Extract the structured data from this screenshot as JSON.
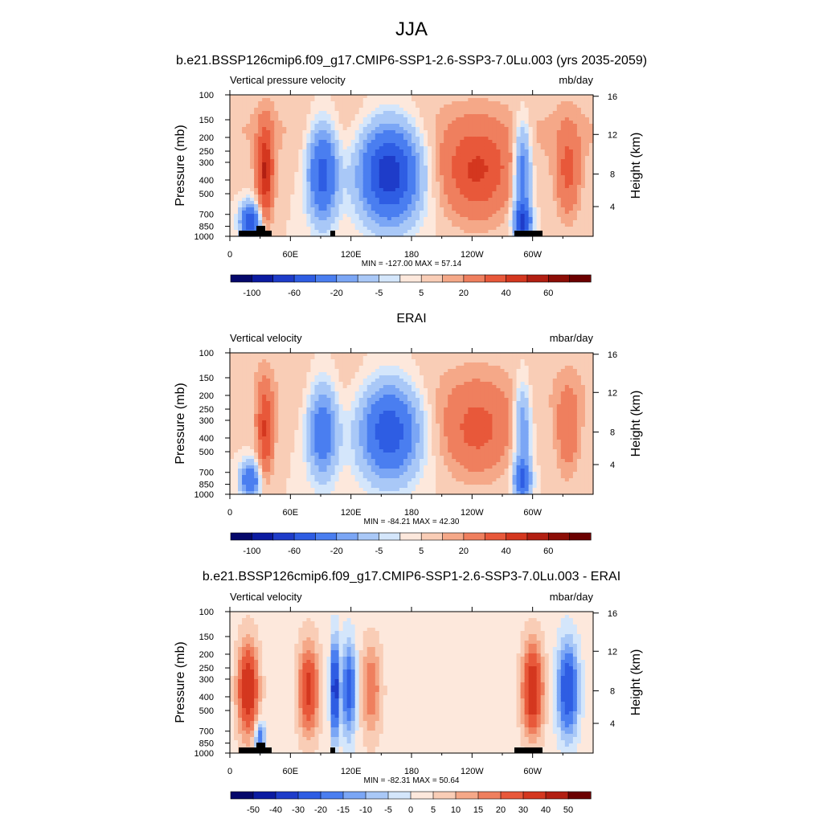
{
  "figure": {
    "title": "JJA"
  },
  "chart_data": [
    {
      "type": "heatmap",
      "title": "b.e21.BSSP126cmip6.f09_g17.CMIP6-SSP1-2.6-SSP3-7.0Lu.003 (yrs 2035-2059)",
      "left_string": "Vertical pressure velocity",
      "right_string": "mb/day",
      "ylabel": "Pressure (mb)",
      "y2label": "Height (km)",
      "x_ticks": [
        "0",
        "60E",
        "120E",
        "180",
        "120W",
        "60W"
      ],
      "y_ticks": [
        "100",
        "150",
        "200",
        "250",
        "300",
        "400",
        "500",
        "700",
        "850",
        "1000"
      ],
      "y2_ticks": [
        "16",
        "12",
        "8",
        "4"
      ],
      "stats": "MIN = -127.00  MAX =  57.14",
      "min": -127.0,
      "max": 57.14,
      "ylim": [
        1000,
        100
      ],
      "xlim": [
        0,
        360
      ],
      "colorbar_labels": [
        "-100",
        "-60",
        "-20",
        "-5",
        "5",
        "20",
        "40",
        "60"
      ],
      "colorbar_colors": [
        "#05086b",
        "#0b1ba1",
        "#1e3cc9",
        "#2e5de3",
        "#4a7ef0",
        "#7ba6f5",
        "#a9c8f7",
        "#d4e6fb",
        "#fde8dc",
        "#f9cdb6",
        "#f5a888",
        "#ef7f5e",
        "#e8583a",
        "#d4371f",
        "#b21f12",
        "#8c0d06",
        "#6b0000"
      ]
    },
    {
      "type": "heatmap",
      "title": "ERAI",
      "left_string": "Vertical velocity",
      "right_string": "mbar/day",
      "ylabel": "Pressure (mb)",
      "y2label": "Height (km)",
      "x_ticks": [
        "0",
        "60E",
        "120E",
        "180",
        "120W",
        "60W"
      ],
      "y_ticks": [
        "100",
        "150",
        "200",
        "250",
        "300",
        "400",
        "500",
        "700",
        "850",
        "1000"
      ],
      "y2_ticks": [
        "16",
        "12",
        "8",
        "4"
      ],
      "stats": "MIN = -84.21  MAX =  42.30",
      "min": -84.21,
      "max": 42.3,
      "ylim": [
        1000,
        100
      ],
      "xlim": [
        0,
        360
      ],
      "colorbar_labels": [
        "-100",
        "-60",
        "-20",
        "-5",
        "5",
        "20",
        "40",
        "60"
      ],
      "colorbar_colors": [
        "#05086b",
        "#0b1ba1",
        "#1e3cc9",
        "#2e5de3",
        "#4a7ef0",
        "#7ba6f5",
        "#a9c8f7",
        "#d4e6fb",
        "#fde8dc",
        "#f9cdb6",
        "#f5a888",
        "#ef7f5e",
        "#e8583a",
        "#d4371f",
        "#b21f12",
        "#8c0d06",
        "#6b0000"
      ]
    },
    {
      "type": "heatmap",
      "title": "b.e21.BSSP126cmip6.f09_g17.CMIP6-SSP1-2.6-SSP3-7.0Lu.003 - ERAI",
      "left_string": "Vertical velocity",
      "right_string": "mbar/day",
      "ylabel": "Pressure (mb)",
      "y2label": "Height (km)",
      "x_ticks": [
        "0",
        "60E",
        "120E",
        "180",
        "120W",
        "60W"
      ],
      "y_ticks": [
        "100",
        "150",
        "200",
        "250",
        "300",
        "400",
        "500",
        "700",
        "850",
        "1000"
      ],
      "y2_ticks": [
        "16",
        "12",
        "8",
        "4"
      ],
      "stats": "MIN = -82.31  MAX =  50.64",
      "min": -82.31,
      "max": 50.64,
      "ylim": [
        1000,
        100
      ],
      "xlim": [
        0,
        360
      ],
      "colorbar_labels": [
        "-50",
        "-40",
        "-30",
        "-20",
        "-15",
        "-10",
        "-5",
        "0",
        "5",
        "10",
        "15",
        "20",
        "30",
        "40",
        "50"
      ],
      "colorbar_colors": [
        "#05086b",
        "#0b1ba1",
        "#1e3cc9",
        "#2e5de3",
        "#4a7ef0",
        "#7ba6f5",
        "#a9c8f7",
        "#d4e6fb",
        "#fde8dc",
        "#f9cdb6",
        "#f5a888",
        "#ef7f5e",
        "#e8583a",
        "#d4371f",
        "#b21f12",
        "#6b0000"
      ]
    }
  ]
}
